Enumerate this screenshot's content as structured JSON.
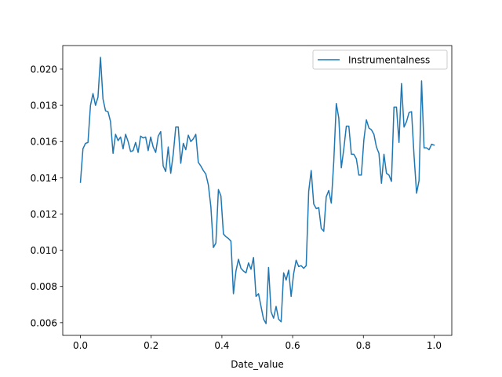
{
  "chart_data": {
    "type": "line",
    "xlabel": "Date_value",
    "ylabel": "",
    "xlim": [
      -0.05,
      1.05
    ],
    "ylim": [
      0.0053,
      0.0213
    ],
    "xticks": [
      0.0,
      0.2,
      0.4,
      0.6,
      0.8,
      1.0
    ],
    "xtick_labels": [
      "0.0",
      "0.2",
      "0.4",
      "0.6",
      "0.8",
      "1.0"
    ],
    "yticks": [
      0.006,
      0.008,
      0.01,
      0.012,
      0.014,
      0.016,
      0.018,
      0.02
    ],
    "ytick_labels": [
      "0.006",
      "0.008",
      "0.010",
      "0.012",
      "0.014",
      "0.016",
      "0.018",
      "0.020"
    ],
    "grid": false,
    "legend_position": "top-right",
    "series": [
      {
        "name": "Instrumentalness",
        "color": "#1f77b4",
        "x": [
          0.0,
          0.0071,
          0.0142,
          0.0213,
          0.0284,
          0.0355,
          0.0426,
          0.0496,
          0.0567,
          0.0638,
          0.0709,
          0.078,
          0.0851,
          0.0922,
          0.0993,
          0.1064,
          0.1135,
          0.1206,
          0.1277,
          0.1348,
          0.1418,
          0.1489,
          0.156,
          0.1631,
          0.1702,
          0.1773,
          0.1844,
          0.1915,
          0.1986,
          0.2057,
          0.2128,
          0.2199,
          0.227,
          0.234,
          0.2411,
          0.2482,
          0.2553,
          0.2624,
          0.2695,
          0.2766,
          0.2837,
          0.2908,
          0.2979,
          0.305,
          0.3121,
          0.3191,
          0.3262,
          0.3333,
          0.3404,
          0.3475,
          0.3546,
          0.3617,
          0.3688,
          0.3759,
          0.383,
          0.3901,
          0.3972,
          0.4043,
          0.4113,
          0.4184,
          0.4255,
          0.4326,
          0.4397,
          0.4468,
          0.4539,
          0.461,
          0.4681,
          0.4752,
          0.4823,
          0.4894,
          0.4965,
          0.5035,
          0.5106,
          0.5177,
          0.5248,
          0.5319,
          0.539,
          0.5461,
          0.5532,
          0.5603,
          0.5674,
          0.5745,
          0.5816,
          0.5887,
          0.5957,
          0.6028,
          0.6099,
          0.617,
          0.6241,
          0.6312,
          0.6383,
          0.6454,
          0.6525,
          0.6596,
          0.6667,
          0.6738,
          0.6809,
          0.6879,
          0.695,
          0.7021,
          0.7092,
          0.7163,
          0.7234,
          0.7305,
          0.7376,
          0.7447,
          0.7518,
          0.7589,
          0.766,
          0.773,
          0.7801,
          0.7872,
          0.7943,
          0.8014,
          0.8085,
          0.8156,
          0.8227,
          0.8298,
          0.8369,
          0.844,
          0.8511,
          0.8582,
          0.8652,
          0.8723,
          0.8794,
          0.8865,
          0.8936,
          0.9007,
          0.9078,
          0.9149,
          0.922,
          0.9291,
          0.9362,
          0.9433,
          0.9504,
          0.9574,
          0.9645,
          0.9716,
          0.9787,
          0.9858,
          0.9929,
          1.0
        ],
        "y": [
          0.01375,
          0.0156,
          0.0159,
          0.01595,
          0.018,
          0.01865,
          0.018,
          0.01845,
          0.02065,
          0.01835,
          0.0177,
          0.01765,
          0.0171,
          0.01535,
          0.0164,
          0.01605,
          0.01625,
          0.0156,
          0.0164,
          0.016,
          0.01545,
          0.0155,
          0.01595,
          0.0154,
          0.0163,
          0.0162,
          0.01625,
          0.0155,
          0.01625,
          0.0157,
          0.0154,
          0.0163,
          0.01655,
          0.01465,
          0.01435,
          0.0157,
          0.01425,
          0.0153,
          0.0168,
          0.0168,
          0.0148,
          0.0159,
          0.01555,
          0.01635,
          0.016,
          0.01615,
          0.0164,
          0.01485,
          0.01465,
          0.0144,
          0.0142,
          0.0136,
          0.0124,
          0.01015,
          0.0104,
          0.01335,
          0.013,
          0.0109,
          0.01075,
          0.01065,
          0.0105,
          0.0076,
          0.00885,
          0.0095,
          0.009,
          0.00885,
          0.00875,
          0.0093,
          0.00895,
          0.0096,
          0.00745,
          0.0076,
          0.0069,
          0.0062,
          0.00595,
          0.00905,
          0.0066,
          0.00625,
          0.0069,
          0.0062,
          0.00605,
          0.00875,
          0.00835,
          0.0089,
          0.00745,
          0.0087,
          0.00945,
          0.0091,
          0.00915,
          0.009,
          0.00915,
          0.01325,
          0.0144,
          0.01255,
          0.0123,
          0.01235,
          0.0112,
          0.01105,
          0.01295,
          0.0133,
          0.0126,
          0.0149,
          0.0181,
          0.0173,
          0.01455,
          0.0156,
          0.01685,
          0.01685,
          0.0153,
          0.0153,
          0.01505,
          0.01415,
          0.01415,
          0.0161,
          0.0172,
          0.01675,
          0.01665,
          0.0164,
          0.0157,
          0.01535,
          0.0137,
          0.0153,
          0.01425,
          0.01415,
          0.0138,
          0.0179,
          0.0179,
          0.01595,
          0.0192,
          0.0168,
          0.0171,
          0.0176,
          0.01765,
          0.0152,
          0.01315,
          0.01385,
          0.01935,
          0.01565,
          0.01565,
          0.01555,
          0.01585,
          0.0158
        ]
      }
    ]
  }
}
